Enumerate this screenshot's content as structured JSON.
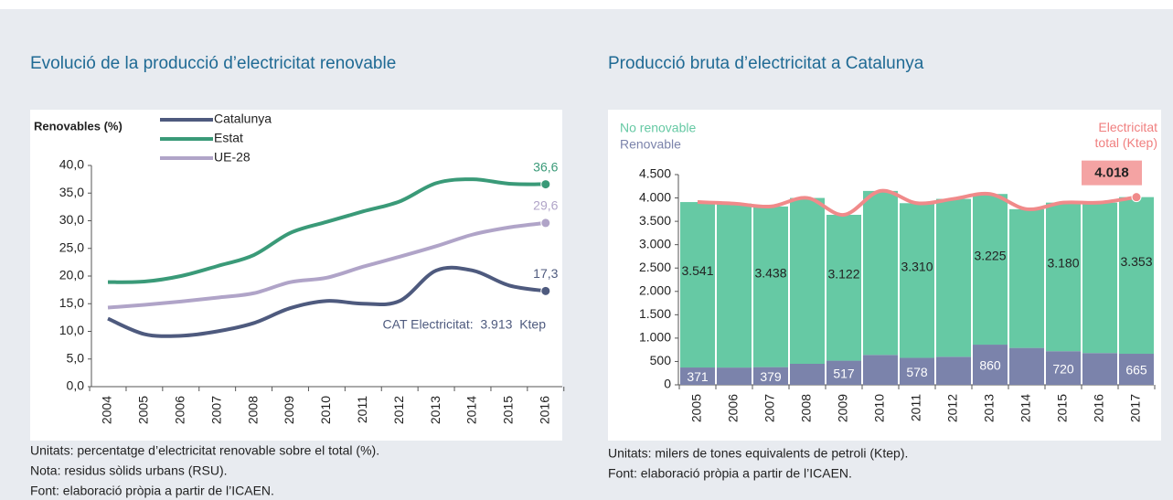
{
  "chart_data": [
    {
      "type": "line",
      "title": "Evolució de la producció d’electricitat renovable",
      "y_label": "Renovables (%)",
      "categories": [
        "2004",
        "2005",
        "2006",
        "2007",
        "2008",
        "2009",
        "2010",
        "2011",
        "2012",
        "2013",
        "2014",
        "2015",
        "2016"
      ],
      "series": [
        {
          "name": "Catalunya",
          "color": "#4e5a7e",
          "values": [
            12.3,
            9.5,
            9.2,
            10.0,
            11.5,
            14.2,
            15.5,
            15.0,
            15.5,
            21.0,
            21.0,
            18.3,
            17.3
          ],
          "value_labels": [
            null,
            null,
            null,
            null,
            null,
            null,
            null,
            null,
            null,
            null,
            null,
            null,
            "17,3"
          ]
        },
        {
          "name": "Estat",
          "color": "#3a9a78",
          "values": [
            18.9,
            19.0,
            20.0,
            21.8,
            23.8,
            27.8,
            29.8,
            31.7,
            33.5,
            36.8,
            37.5,
            36.7,
            36.6
          ],
          "value_labels": [
            null,
            null,
            null,
            null,
            null,
            null,
            null,
            null,
            null,
            null,
            null,
            null,
            "36,6"
          ]
        },
        {
          "name": "UE-28",
          "color": "#b0a4c8",
          "values": [
            14.3,
            14.8,
            15.4,
            16.1,
            16.9,
            18.9,
            19.7,
            21.7,
            23.5,
            25.4,
            27.5,
            28.8,
            29.6
          ],
          "value_labels": [
            null,
            null,
            null,
            null,
            null,
            null,
            null,
            null,
            null,
            null,
            null,
            null,
            "29,6"
          ]
        }
      ],
      "ylim": [
        0,
        40
      ],
      "yticks": [
        {
          "value": 0,
          "label": "0,0"
        },
        {
          "value": 5,
          "label": "5,0"
        },
        {
          "value": 10,
          "label": "10,0"
        },
        {
          "value": 15,
          "label": "15,0"
        },
        {
          "value": 20,
          "label": "20,0"
        },
        {
          "value": 25,
          "label": "25,0"
        },
        {
          "value": 30,
          "label": "30,0"
        },
        {
          "value": 35,
          "label": "35,0"
        },
        {
          "value": 40,
          "label": "40,0"
        }
      ],
      "annotation": "CAT Electricitat:  3.913  Ktep",
      "notes": [
        "Unitats: percentatge d’electricitat renovable sobre el total (%).",
        "Nota: residus sòlids urbans (RSU).",
        "Font: elaboració pròpia a partir de l’ICAEN."
      ]
    },
    {
      "type": "stacked_bar",
      "title": "Producció bruta d’electricitat a Catalunya",
      "categories": [
        "2005",
        "2006",
        "2007",
        "2008",
        "2009",
        "2010",
        "2011",
        "2012",
        "2013",
        "2014",
        "2015",
        "2016",
        "2017"
      ],
      "series": [
        {
          "name": "No renovable",
          "color": "#66c9a4",
          "values": [
            3541,
            3510,
            3438,
            3550,
            3122,
            3510,
            3310,
            3380,
            3225,
            2970,
            3180,
            3220,
            3353
          ],
          "value_labels": [
            "3.541",
            null,
            "3.438",
            null,
            "3.122",
            null,
            "3.310",
            null,
            "3.225",
            null,
            "3.180",
            null,
            "3.353"
          ]
        },
        {
          "name": "Renovable",
          "color": "#7b83ab",
          "values": [
            371,
            370,
            379,
            450,
            517,
            640,
            578,
            600,
            860,
            790,
            720,
            680,
            665
          ],
          "value_labels": [
            "371",
            null,
            "379",
            null,
            "517",
            null,
            "578",
            null,
            "860",
            null,
            "720",
            null,
            "665"
          ]
        },
        {
          "name": "Electricitat total (Ktep)",
          "type": "line",
          "color": "#f08a8a",
          "values": [
            3912,
            3880,
            3817,
            4000,
            3639,
            4150,
            3888,
            3980,
            4085,
            3760,
            3900,
            3900,
            4018
          ],
          "value_labels": [
            null,
            null,
            null,
            null,
            null,
            null,
            null,
            null,
            null,
            null,
            null,
            null,
            "4.018"
          ]
        }
      ],
      "ylim": [
        0,
        4500
      ],
      "yticks": [
        0,
        500,
        {
          "value": 1000,
          "label": "1.000"
        },
        {
          "value": 1500,
          "label": "1.500"
        },
        {
          "value": 2000,
          "label": "2.000"
        },
        {
          "value": 2500,
          "label": "2.500"
        },
        {
          "value": 3000,
          "label": "3.000"
        },
        {
          "value": 3500,
          "label": "3.500"
        },
        {
          "value": 4000,
          "label": "4.000"
        },
        {
          "value": 4500,
          "label": "4.500"
        }
      ],
      "notes": [
        "Unitats: milers de tones equivalents de petroli (Ktep).",
        "Font: elaboració pròpia a partir de l’ICAEN."
      ]
    }
  ]
}
